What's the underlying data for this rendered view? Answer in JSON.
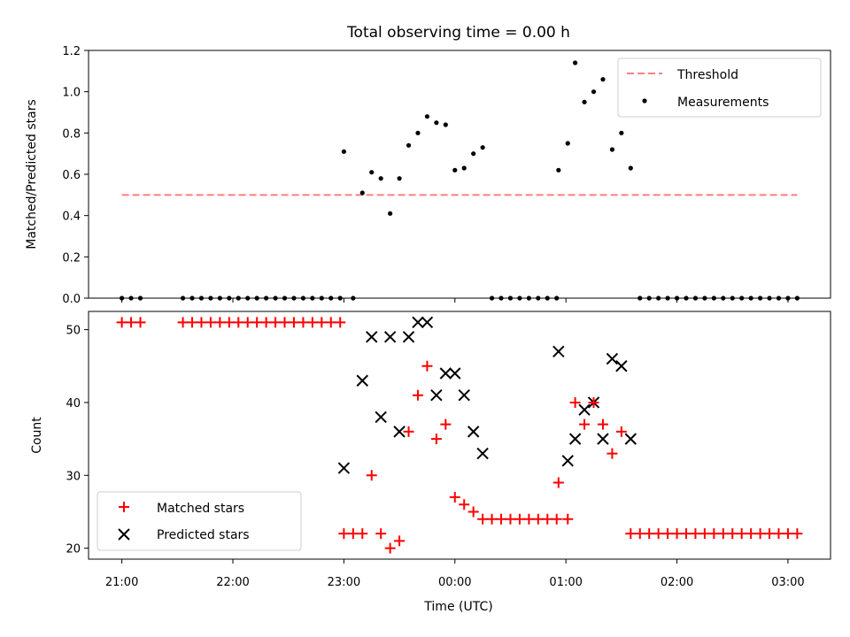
{
  "colors": {
    "threshold": "#ff7f7f",
    "measurement": "#000000",
    "matched": "#ff0000",
    "predicted": "#000000"
  },
  "chart_data": [
    {
      "type": "scatter",
      "title": "Total observing time = 0.00 h",
      "ylabel": "Matched/Predicted stars",
      "xlabel": "",
      "xlim": [
        "20:42",
        "03:23"
      ],
      "ylim": [
        0,
        1.2
      ],
      "xticks": [
        "21:00",
        "22:00",
        "23:00",
        "00:00",
        "01:00",
        "02:00",
        "03:00"
      ],
      "yticks": [
        "0.0",
        "0.2",
        "0.4",
        "0.6",
        "0.8",
        "1.0",
        "1.2"
      ],
      "legend": {
        "position": "top-right",
        "entries": [
          "Threshold",
          "Measurements"
        ]
      },
      "threshold": {
        "name": "Threshold",
        "y": 0.5,
        "x_start": "21:00",
        "x_end": "03:05"
      },
      "measurements": {
        "name": "Measurements",
        "x": [
          "21:00",
          "21:05",
          "21:10",
          "21:33",
          "21:38",
          "21:43",
          "21:48",
          "21:53",
          "21:58",
          "22:03",
          "22:08",
          "22:13",
          "22:18",
          "22:23",
          "22:28",
          "22:33",
          "22:38",
          "22:43",
          "22:48",
          "22:53",
          "22:58",
          "23:00",
          "23:05",
          "23:10",
          "23:15",
          "23:20",
          "23:25",
          "23:30",
          "23:35",
          "23:40",
          "23:45",
          "23:50",
          "23:55",
          "00:00",
          "00:05",
          "00:10",
          "00:15",
          "00:20",
          "00:25",
          "00:30",
          "00:35",
          "00:40",
          "00:45",
          "00:50",
          "00:55",
          "00:56",
          "01:01",
          "01:05",
          "01:10",
          "01:15",
          "01:20",
          "01:25",
          "01:30",
          "01:35",
          "01:40",
          "01:45",
          "01:50",
          "01:55",
          "02:00",
          "02:05",
          "02:10",
          "02:15",
          "02:20",
          "02:25",
          "02:30",
          "02:35",
          "02:40",
          "02:45",
          "02:50",
          "02:55",
          "03:00",
          "03:05"
        ],
        "y": [
          0,
          0,
          0,
          0,
          0,
          0,
          0,
          0,
          0,
          0,
          0,
          0,
          0,
          0,
          0,
          0,
          0,
          0,
          0,
          0,
          0,
          0.71,
          0,
          0.51,
          0.61,
          0.58,
          0.41,
          0.58,
          0.74,
          0.8,
          0.88,
          0.85,
          0.84,
          0.62,
          0.63,
          0.7,
          0.73,
          0,
          0,
          0,
          0,
          0,
          0,
          0,
          0,
          0.62,
          0.75,
          1.14,
          0.95,
          1.0,
          1.06,
          0.72,
          0.8,
          0.63,
          0,
          0,
          0,
          0,
          0,
          0,
          0,
          0,
          0,
          0,
          0,
          0,
          0,
          0,
          0,
          0,
          0,
          0
        ]
      }
    },
    {
      "type": "scatter",
      "title": "",
      "ylabel": "Count",
      "xlabel": "Time (UTC)",
      "xlim": [
        "20:42",
        "03:23"
      ],
      "ylim": [
        18.5,
        52.5
      ],
      "xticks": [
        "21:00",
        "22:00",
        "23:00",
        "00:00",
        "01:00",
        "02:00",
        "03:00"
      ],
      "yticks": [
        "20",
        "30",
        "40",
        "50"
      ],
      "legend": {
        "position": "bottom-left",
        "entries": [
          "Matched stars",
          "Predicted stars"
        ]
      },
      "series": [
        {
          "name": "Matched stars",
          "marker": "plus",
          "x": [
            "21:00",
            "21:05",
            "21:10",
            "21:33",
            "21:38",
            "21:43",
            "21:48",
            "21:53",
            "21:58",
            "22:03",
            "22:08",
            "22:13",
            "22:18",
            "22:23",
            "22:28",
            "22:33",
            "22:38",
            "22:43",
            "22:48",
            "22:53",
            "22:58",
            "23:00",
            "23:05",
            "23:10",
            "23:15",
            "23:20",
            "23:25",
            "23:30",
            "23:35",
            "23:40",
            "23:45",
            "23:50",
            "23:55",
            "00:00",
            "00:05",
            "00:10",
            "00:15",
            "00:20",
            "00:25",
            "00:30",
            "00:35",
            "00:40",
            "00:45",
            "00:50",
            "00:55",
            "00:56",
            "01:01",
            "01:05",
            "01:10",
            "01:15",
            "01:20",
            "01:25",
            "01:30",
            "01:35",
            "01:40",
            "01:45",
            "01:50",
            "01:55",
            "02:00",
            "02:05",
            "02:10",
            "02:15",
            "02:20",
            "02:25",
            "02:30",
            "02:35",
            "02:40",
            "02:45",
            "02:50",
            "02:55",
            "03:00",
            "03:05"
          ],
          "y": [
            51,
            51,
            51,
            51,
            51,
            51,
            51,
            51,
            51,
            51,
            51,
            51,
            51,
            51,
            51,
            51,
            51,
            51,
            51,
            51,
            51,
            22,
            22,
            22,
            30,
            22,
            20,
            21,
            36,
            41,
            45,
            35,
            37,
            27,
            26,
            25,
            24,
            24,
            24,
            24,
            24,
            24,
            24,
            24,
            24,
            29,
            24,
            40,
            37,
            40,
            37,
            33,
            36,
            22,
            22,
            22,
            22,
            22,
            22,
            22,
            22,
            22,
            22,
            22,
            22,
            22,
            22,
            22,
            22,
            22,
            22,
            22
          ]
        },
        {
          "name": "Predicted stars",
          "marker": "x",
          "x": [
            "23:00",
            "23:10",
            "23:15",
            "23:20",
            "23:25",
            "23:30",
            "23:35",
            "23:40",
            "23:45",
            "23:50",
            "23:55",
            "00:00",
            "00:05",
            "00:10",
            "00:15",
            "00:56",
            "01:01",
            "01:05",
            "01:10",
            "01:15",
            "01:20",
            "01:25",
            "01:30",
            "01:35"
          ],
          "y": [
            31,
            43,
            49,
            38,
            49,
            36,
            49,
            51,
            51,
            41,
            44,
            44,
            41,
            36,
            33,
            47,
            32,
            35,
            39,
            40,
            35,
            46,
            45,
            35
          ]
        }
      ]
    }
  ]
}
